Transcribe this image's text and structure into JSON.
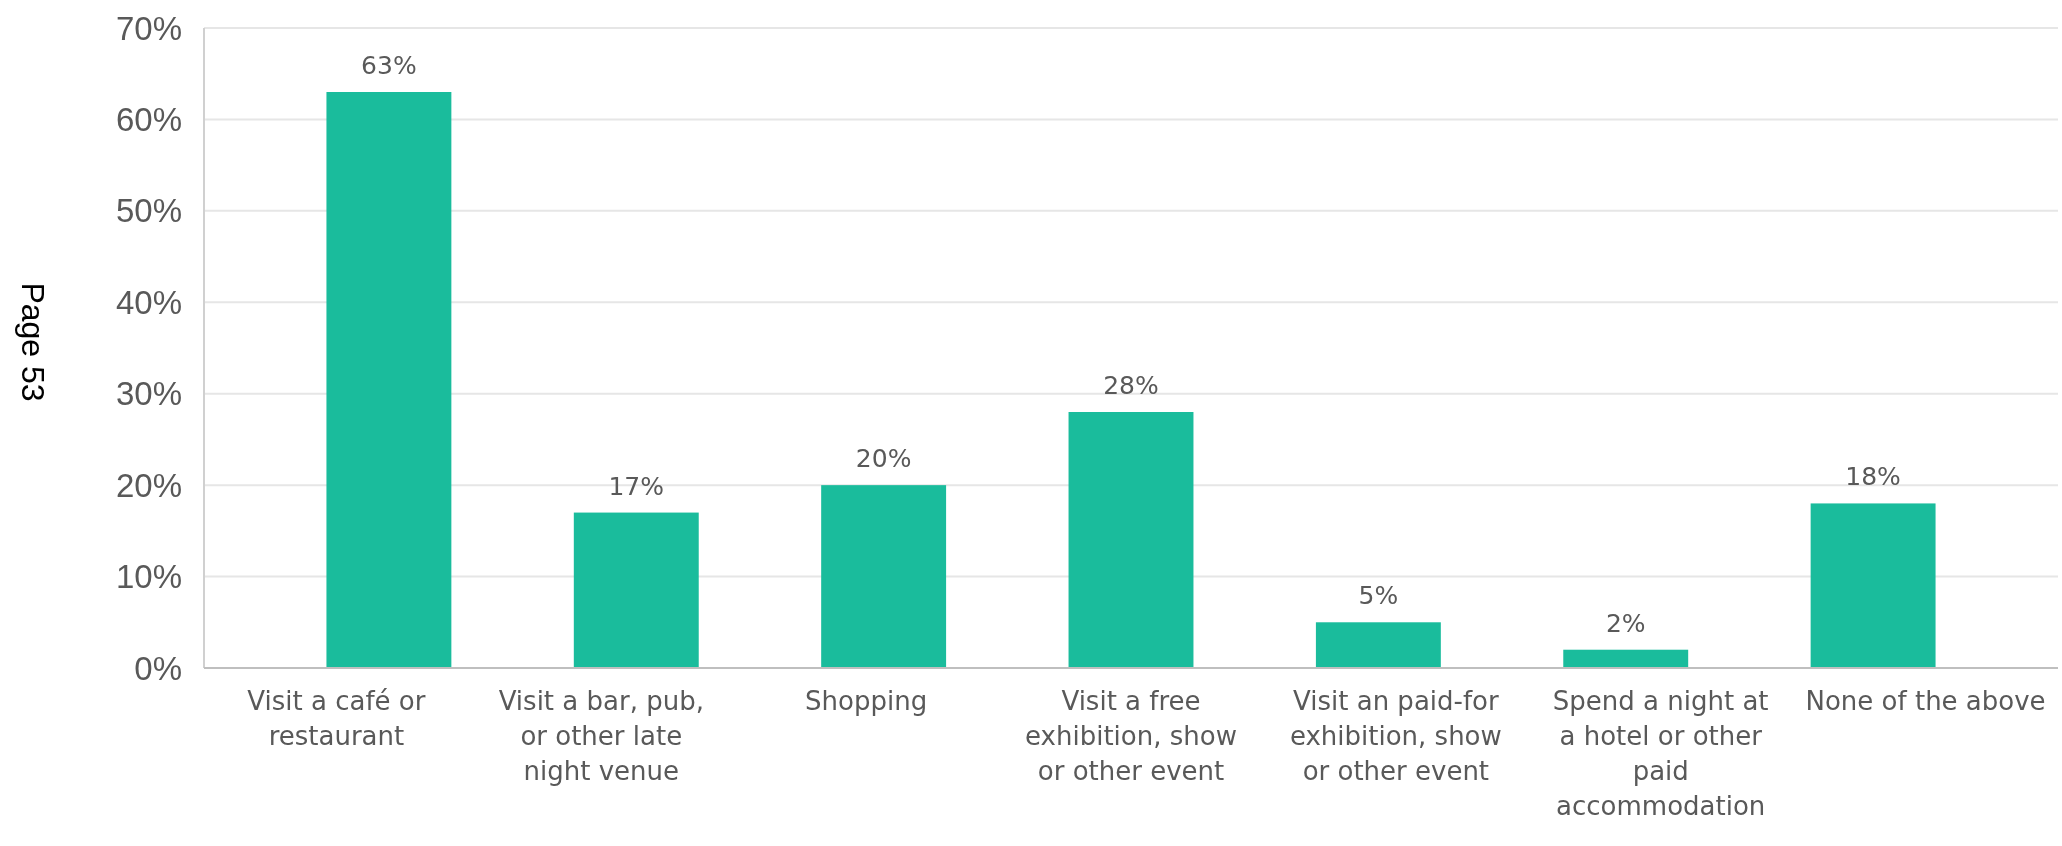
{
  "chart_data": {
    "type": "bar",
    "categories": [
      "Visit a café or restaurant",
      "Visit a bar, pub, or other late night venue",
      "Shopping",
      "Visit a free exhibition, show or other event",
      "Visit an paid-for exhibition, show or other event",
      "Spend a night at a hotel or other paid accommodation",
      "None of the above"
    ],
    "values": [
      63,
      17,
      20,
      28,
      5,
      2,
      18
    ],
    "value_labels": [
      "63%",
      "17%",
      "20%",
      "28%",
      "5%",
      "2%",
      "18%"
    ],
    "color": "#1abc9c",
    "ylim": [
      0,
      70
    ],
    "yticks": [
      {
        "value": 0,
        "label": "0%"
      },
      {
        "value": 10,
        "label": "10%"
      },
      {
        "value": 20,
        "label": "20%"
      },
      {
        "value": 30,
        "label": "30%"
      },
      {
        "value": 40,
        "label": "40%"
      },
      {
        "value": 50,
        "label": "50%"
      },
      {
        "value": 60,
        "label": "60%"
      },
      {
        "value": 70,
        "label": "70%"
      }
    ],
    "grid": "y",
    "annotations": [
      "Page 53"
    ]
  }
}
